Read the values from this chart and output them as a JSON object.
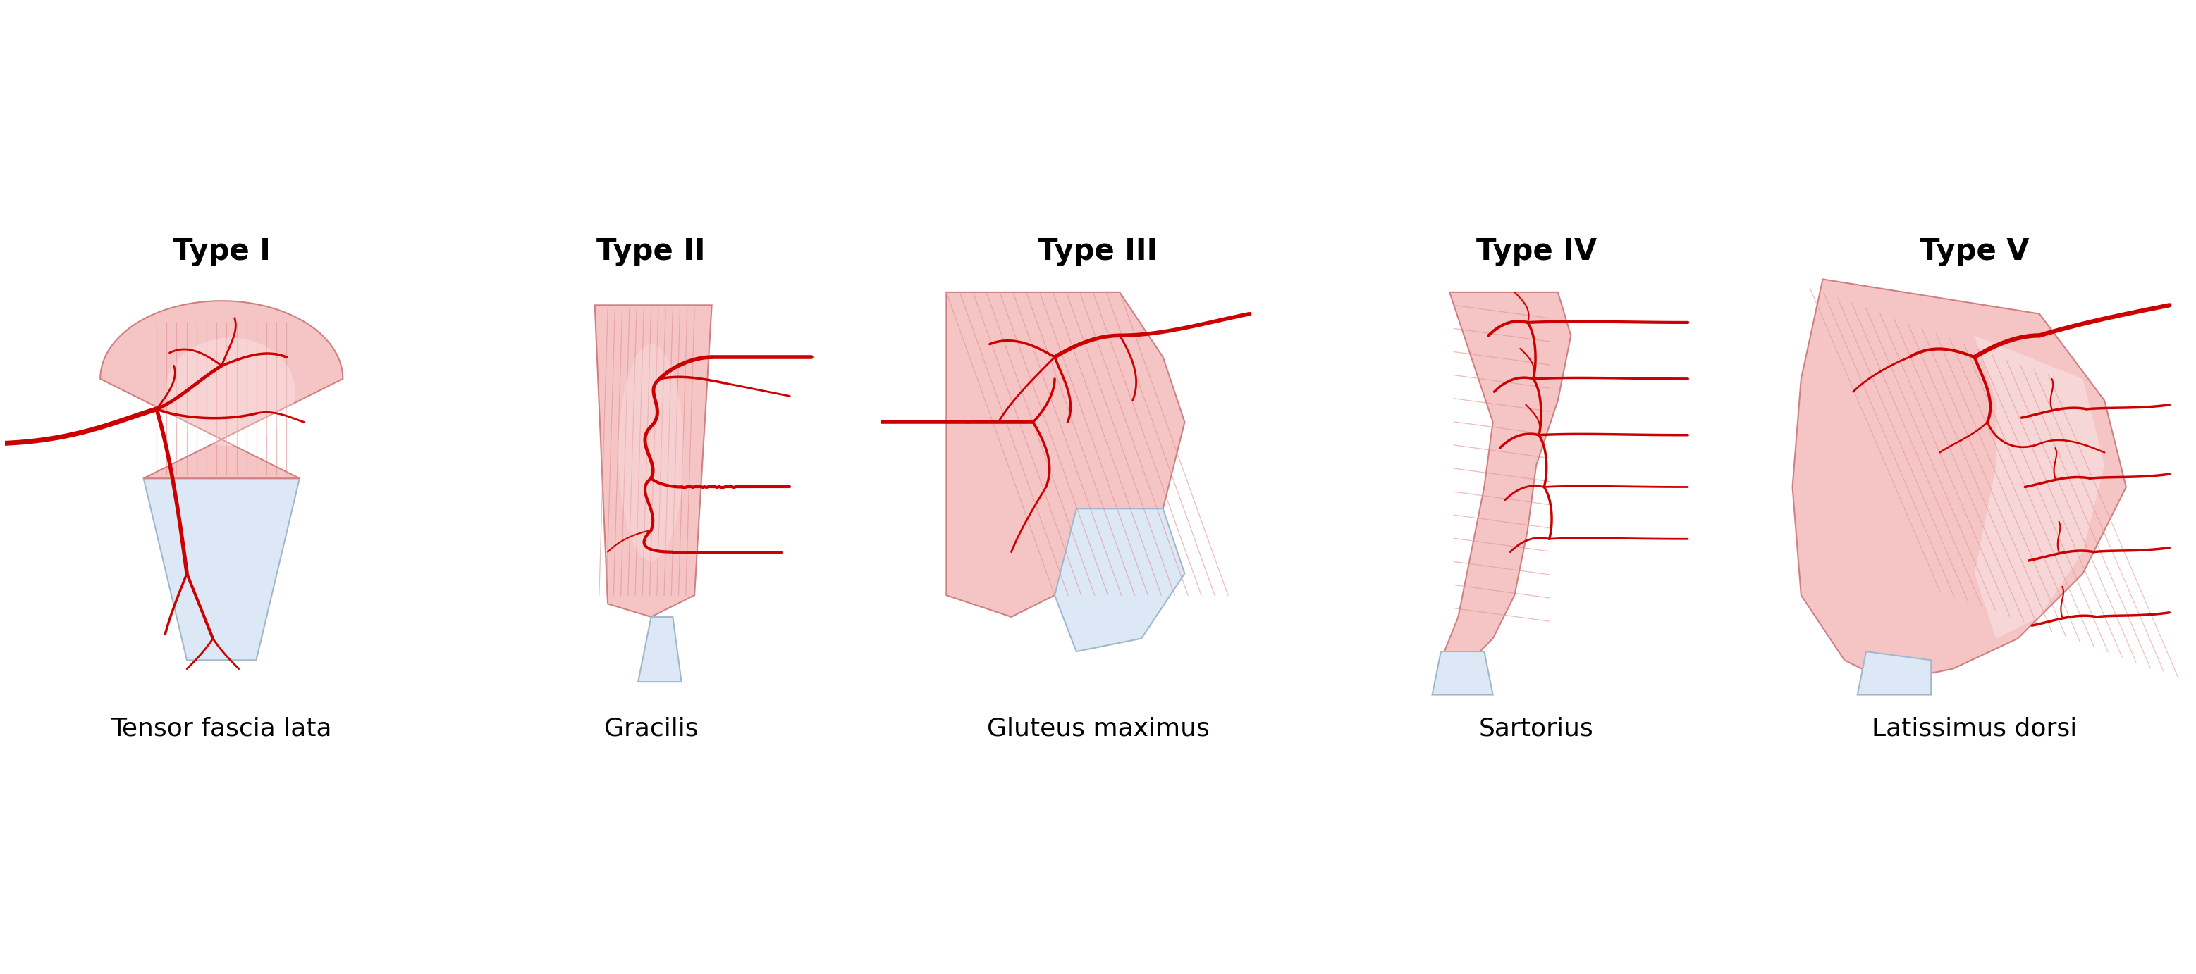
{
  "types": [
    "Type I",
    "Type II",
    "Type III",
    "Type IV",
    "Type V"
  ],
  "labels": [
    "Tensor fascia lata",
    "Gracilis",
    "Gluteus maximus",
    "Sartorius",
    "Latissimus dorsi"
  ],
  "background_color": "#ffffff",
  "muscle_fill_color": "#f5c5c5",
  "tendon_fill_color": "#dce8f5",
  "artery_color": "#cc0000",
  "muscle_line_color": "#e09090",
  "label_fontsize": 26,
  "type_fontsize": 30
}
